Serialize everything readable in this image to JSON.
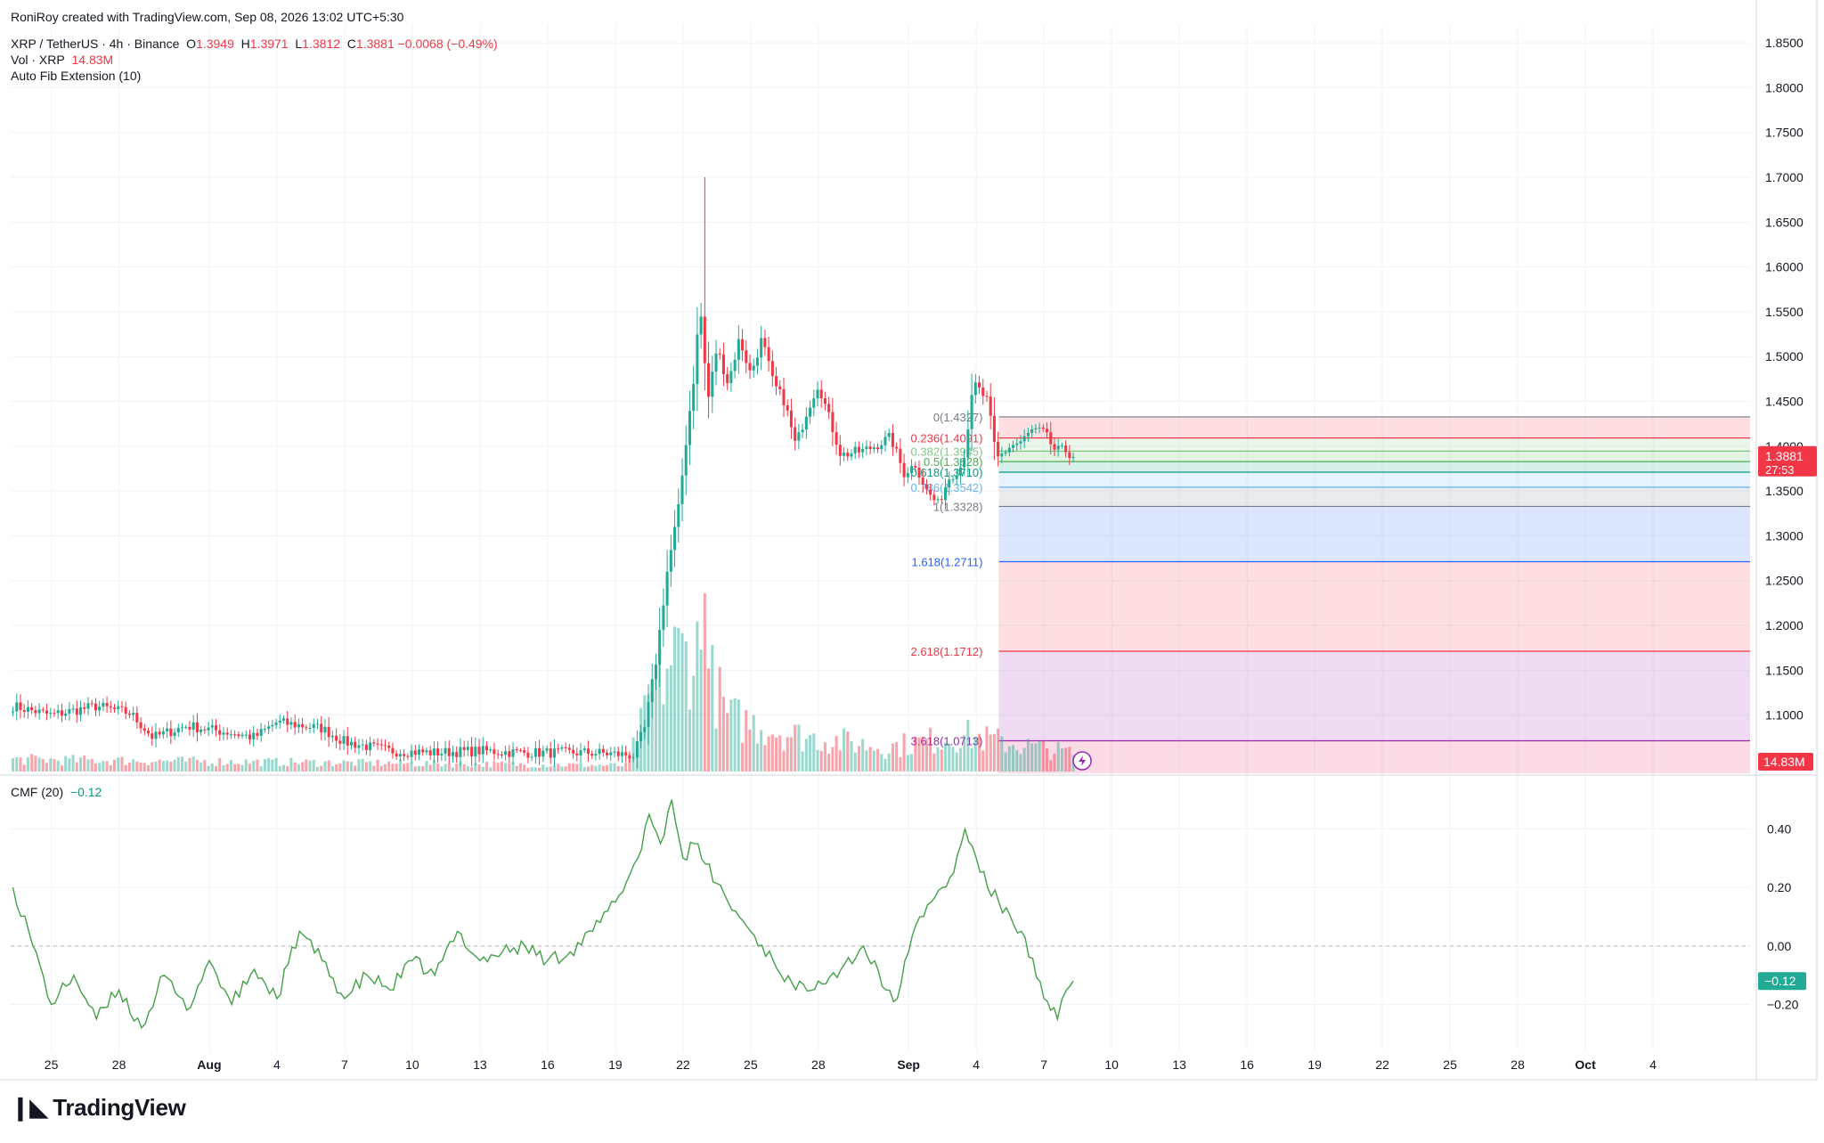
{
  "header": {
    "credit": "RoniRoy created with TradingView.com, Sep 08, 2026 13:02 UTC+5:30",
    "symbol": "XRP / TetherUS · 4h · Binance",
    "o_label": "O",
    "o_value": "1.3949",
    "h_label": "H",
    "h_value": "1.3971",
    "l_label": "L",
    "l_value": "1.3812",
    "c_label": "C",
    "c_value": "1.3881",
    "change": "−0.0068 (−0.49%)",
    "vol_label": "Vol · XRP",
    "vol_value": "14.83M",
    "fib_label": "Auto Fib Extension (10)",
    "cmf_label": "CMF (20)",
    "cmf_value": "−0.12"
  },
  "brand": {
    "logo_icon": "tradingview-logo-icon",
    "text": "TradingView"
  },
  "price_badge": {
    "value": "1.3881",
    "countdown": "27:53",
    "color": "#f23645"
  },
  "volume_badge": {
    "value": "14.83M",
    "color": "#f23645"
  },
  "cmf_badge": {
    "value": "−0.12",
    "color": "#22ab94"
  },
  "colors": {
    "up": "#22ab94",
    "down": "#f23645",
    "cmf_line": "#43a047",
    "grid": "#f0f3fa"
  },
  "chart_data": [
    {
      "type": "candlestick",
      "title": "XRP / TetherUS · 4h · Binance",
      "price_axis_ticks": [
        "1.8500",
        "1.8000",
        "1.7500",
        "1.7000",
        "1.6500",
        "1.6000",
        "1.5500",
        "1.5000",
        "1.4500",
        "1.4000",
        "1.3500",
        "1.3000",
        "1.2500",
        "1.2000",
        "1.1500",
        "1.1000"
      ],
      "price_axis_values": [
        1.85,
        1.8,
        1.75,
        1.7,
        1.65,
        1.6,
        1.55,
        1.5,
        1.45,
        1.4,
        1.35,
        1.3,
        1.25,
        1.2,
        1.15,
        1.1
      ],
      "ylim": [
        1.035,
        1.87
      ],
      "x_ticks": [
        "25",
        "28",
        "Aug",
        "4",
        "7",
        "10",
        "13",
        "16",
        "19",
        "22",
        "25",
        "28",
        "Sep",
        "4",
        "7",
        "10",
        "13",
        "16",
        "19",
        "22",
        "25",
        "28",
        "Oct",
        "4"
      ],
      "x_tick_days": [
        -7,
        -4,
        0,
        3,
        6,
        9,
        12,
        15,
        18,
        21,
        24,
        27,
        31,
        34,
        37,
        40,
        43,
        46,
        49,
        52,
        55,
        58,
        61,
        64
      ],
      "x_tick_bold": [
        "Aug",
        "Sep",
        "Oct"
      ],
      "xlim_days": [
        -8.8,
        68.3
      ],
      "grid": true,
      "last_price": 1.3881,
      "anchors": [
        {
          "day": -8.7,
          "close": 1.11
        },
        {
          "day": -7,
          "close": 1.1
        },
        {
          "day": -5,
          "close": 1.11
        },
        {
          "day": -3.5,
          "close": 1.102
        },
        {
          "day": -2.5,
          "close": 1.075
        },
        {
          "day": -1,
          "close": 1.088
        },
        {
          "day": 1,
          "close": 1.08
        },
        {
          "day": 2,
          "close": 1.075
        },
        {
          "day": 3,
          "close": 1.092
        },
        {
          "day": 5,
          "close": 1.085
        },
        {
          "day": 6,
          "close": 1.07
        },
        {
          "day": 8,
          "close": 1.06
        },
        {
          "day": 10,
          "close": 1.058
        },
        {
          "day": 12,
          "close": 1.06
        },
        {
          "day": 14,
          "close": 1.058
        },
        {
          "day": 17,
          "close": 1.058
        },
        {
          "day": 18.8,
          "close": 1.055
        },
        {
          "day": 19.3,
          "close": 1.085
        },
        {
          "day": 19.8,
          "close": 1.16
        },
        {
          "day": 20.3,
          "close": 1.26
        },
        {
          "day": 20.8,
          "close": 1.33
        },
        {
          "day": 21.2,
          "close": 1.42
        },
        {
          "day": 21.5,
          "close": 1.48
        },
        {
          "day": 21.75,
          "close": 1.56
        },
        {
          "day": 22.1,
          "close": 1.45
        },
        {
          "day": 22.5,
          "close": 1.51
        },
        {
          "day": 23,
          "close": 1.47
        },
        {
          "day": 23.5,
          "close": 1.52
        },
        {
          "day": 24,
          "close": 1.48
        },
        {
          "day": 24.5,
          "close": 1.52
        },
        {
          "day": 25,
          "close": 1.47
        },
        {
          "day": 25.5,
          "close": 1.45
        },
        {
          "day": 26,
          "close": 1.4
        },
        {
          "day": 26.5,
          "close": 1.44
        },
        {
          "day": 27,
          "close": 1.47
        },
        {
          "day": 27.5,
          "close": 1.43
        },
        {
          "day": 28,
          "close": 1.39
        },
        {
          "day": 29,
          "close": 1.395
        },
        {
          "day": 29.5,
          "close": 1.4
        },
        {
          "day": 30.2,
          "close": 1.41
        },
        {
          "day": 30.8,
          "close": 1.37
        },
        {
          "day": 31.3,
          "close": 1.38
        },
        {
          "day": 31.8,
          "close": 1.35
        },
        {
          "day": 32.3,
          "close": 1.335
        },
        {
          "day": 32.8,
          "close": 1.365
        },
        {
          "day": 33.4,
          "close": 1.38
        },
        {
          "day": 33.9,
          "close": 1.47
        },
        {
          "day": 34.5,
          "close": 1.45
        },
        {
          "day": 34.9,
          "close": 1.385
        },
        {
          "day": 35.5,
          "close": 1.4
        },
        {
          "day": 36,
          "close": 1.405
        },
        {
          "day": 36.5,
          "close": 1.418
        },
        {
          "day": 37,
          "close": 1.415
        },
        {
          "day": 37.5,
          "close": 1.395
        },
        {
          "day": 38,
          "close": 1.3949
        },
        {
          "day": 38.3,
          "close": 1.3881
        }
      ],
      "spike": {
        "day": 21.9,
        "high": 1.7
      }
    },
    {
      "type": "fibonacci",
      "name": "Auto Fib Extension (10)",
      "levels": [
        {
          "label": "0(1.4327)",
          "ratio": 0,
          "price": 1.4327,
          "color": "#787b86"
        },
        {
          "label": "0.236(1.4091)",
          "ratio": 0.236,
          "price": 1.4091,
          "color": "#f23645"
        },
        {
          "label": "0.382(1.3945)",
          "ratio": 0.382,
          "price": 1.3945,
          "color": "#81c784"
        },
        {
          "label": "0.5(1.3828)",
          "ratio": 0.5,
          "price": 1.3828,
          "color": "#4caf50"
        },
        {
          "label": "0.618(1.3710)",
          "ratio": 0.618,
          "price": 1.371,
          "color": "#089981"
        },
        {
          "label": "0.786(1.3542)",
          "ratio": 0.786,
          "price": 1.3542,
          "color": "#64b5f6"
        },
        {
          "label": "1(1.3328)",
          "ratio": 1,
          "price": 1.3328,
          "color": "#787b86"
        },
        {
          "label": "1.618(1.2711)",
          "ratio": 1.618,
          "price": 1.2711,
          "color": "#2962ff"
        },
        {
          "label": "2.618(1.1712)",
          "ratio": 2.618,
          "price": 1.1712,
          "color": "#f23645"
        },
        {
          "label": "3.618(1.0713)",
          "ratio": 3.618,
          "price": 1.0713,
          "color": "#9c27b0"
        }
      ],
      "start_day": 35.0,
      "zones": [
        {
          "from": 1.4327,
          "to": 1.4091,
          "color": "#f23645"
        },
        {
          "from": 1.4091,
          "to": 1.3945,
          "color": "#81c784"
        },
        {
          "from": 1.3945,
          "to": 1.3828,
          "color": "#4caf50"
        },
        {
          "from": 1.3828,
          "to": 1.371,
          "color": "#089981"
        },
        {
          "from": 1.371,
          "to": 1.3542,
          "color": "#64b5f6"
        },
        {
          "from": 1.3542,
          "to": 1.3328,
          "color": "#787b86"
        },
        {
          "from": 1.3328,
          "to": 1.2711,
          "color": "#2962ff"
        },
        {
          "from": 1.2711,
          "to": 1.1712,
          "color": "#f23645"
        },
        {
          "from": 1.1712,
          "to": 1.0713,
          "color": "#9c27b0"
        },
        {
          "from": 1.0713,
          "to": 1.035,
          "color": "#e91e63"
        }
      ]
    },
    {
      "type": "bar",
      "name": "Vol · XRP",
      "last_value": "14.83M",
      "profile": [
        {
          "day": -8.7,
          "level": 0.1
        },
        {
          "day": 18.5,
          "level": 0.05
        },
        {
          "day": 19.5,
          "level": 0.55
        },
        {
          "day": 20.5,
          "level": 0.95
        },
        {
          "day": 21.7,
          "level": 1.0
        },
        {
          "day": 23,
          "level": 0.45
        },
        {
          "day": 26,
          "level": 0.3
        },
        {
          "day": 30,
          "level": 0.2
        },
        {
          "day": 33.5,
          "level": 0.3
        },
        {
          "day": 35,
          "level": 0.25
        },
        {
          "day": 38.3,
          "level": 0.15
        }
      ],
      "peak_day": 21.9
    },
    {
      "type": "line",
      "name": "CMF (20)",
      "last_value": -0.12,
      "y_ticks": [
        "0.40",
        "0.20",
        "0.00",
        "−0.20"
      ],
      "y_tick_values": [
        0.4,
        0.2,
        0.0,
        -0.2
      ],
      "ylim": [
        -0.36,
        0.56
      ],
      "zero_line": true,
      "x": [
        -8.7,
        -8,
        -7,
        -6,
        -5,
        -4,
        -3,
        -2,
        -1,
        0,
        1,
        2,
        3,
        4,
        5,
        6,
        7,
        8,
        9,
        10,
        11,
        12,
        13,
        14,
        15,
        16,
        17,
        18,
        19,
        19.5,
        20,
        20.5,
        21,
        21.5,
        22,
        23,
        24,
        25,
        26,
        27,
        28,
        29,
        30,
        30.5,
        31,
        31.5,
        32,
        32.5,
        33,
        33.5,
        34,
        34.5,
        35,
        36,
        37,
        37.3,
        37.6,
        38,
        38.3
      ],
      "y": [
        0.2,
        0.05,
        -0.2,
        -0.1,
        -0.25,
        -0.15,
        -0.28,
        -0.1,
        -0.22,
        -0.05,
        -0.2,
        -0.08,
        -0.18,
        0.05,
        -0.05,
        -0.18,
        -0.1,
        -0.15,
        -0.05,
        -0.1,
        0.05,
        -0.05,
        -0.02,
        0.0,
        -0.05,
        -0.02,
        0.05,
        0.15,
        0.3,
        0.45,
        0.35,
        0.5,
        0.3,
        0.35,
        0.28,
        0.15,
        0.05,
        -0.05,
        -0.15,
        -0.12,
        -0.08,
        0.0,
        -0.15,
        -0.18,
        -0.02,
        0.1,
        0.15,
        0.2,
        0.25,
        0.4,
        0.3,
        0.2,
        0.15,
        0.05,
        -0.18,
        -0.22,
        -0.25,
        -0.15,
        -0.12
      ]
    }
  ]
}
